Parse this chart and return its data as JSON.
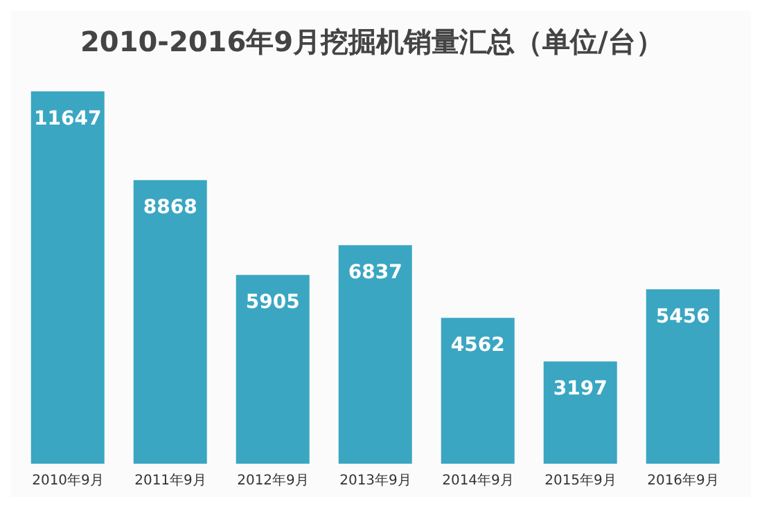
{
  "chart_data": {
    "type": "bar",
    "title": "2010-2016年9月挖掘机销量汇总（单位/台）",
    "categories": [
      "2010年9月",
      "2011年9月",
      "2012年9月",
      "2013年9月",
      "2014年9月",
      "2015年9月",
      "2016年9月"
    ],
    "values": [
      11647,
      8868,
      5905,
      6837,
      4562,
      3197,
      5456
    ],
    "color": "#3aa6c2",
    "data_labels": true,
    "tick_labels": "x"
  }
}
